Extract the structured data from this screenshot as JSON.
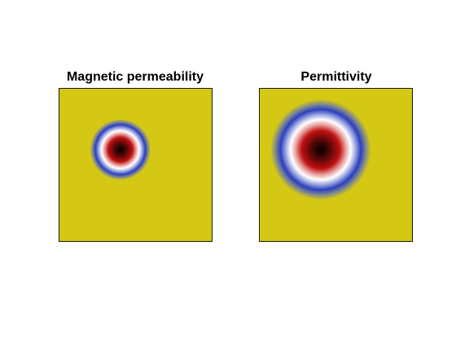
{
  "chart_data": [
    {
      "type": "heatmap",
      "title": "Magnetic permeability",
      "feature": {
        "shape": "radial-gaussian",
        "center": [
          0.4,
          0.4
        ],
        "radius": 0.2
      },
      "colormap": [
        "#000000",
        "#c01010",
        "#ffffff",
        "#2b3fbf",
        "#d4c814"
      ],
      "background_color": "#d4c814"
    },
    {
      "type": "heatmap",
      "title": "Permittivity",
      "feature": {
        "shape": "radial-gaussian",
        "center": [
          0.4,
          0.4
        ],
        "radius": 0.33
      },
      "colormap": [
        "#000000",
        "#c01010",
        "#ffffff",
        "#2b3fbf",
        "#d4c814"
      ],
      "background_color": "#d4c814"
    }
  ]
}
